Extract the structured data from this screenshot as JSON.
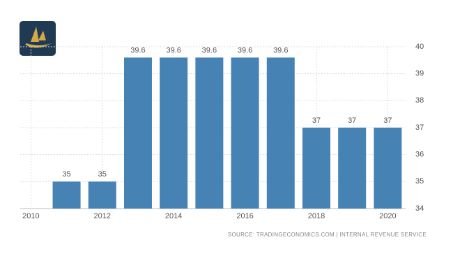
{
  "chart_data": {
    "type": "bar",
    "x": [
      2011,
      2012,
      2013,
      2014,
      2015,
      2016,
      2017,
      2018,
      2019,
      2020
    ],
    "values": [
      35,
      35,
      39.6,
      39.6,
      39.6,
      39.6,
      39.6,
      37,
      37,
      37
    ],
    "color": "#4682b4",
    "xlim": [
      2009.7,
      2020.5
    ],
    "xticks": [
      2010,
      2012,
      2014,
      2016,
      2018,
      2020
    ],
    "ylim": [
      34,
      40
    ],
    "yticks": [
      34,
      35,
      36,
      37,
      38,
      39,
      40
    ],
    "grid": true,
    "source": "SOURCE: TRADINGECONOMICS.COM | INTERNAL REVENUE SERVICE"
  }
}
